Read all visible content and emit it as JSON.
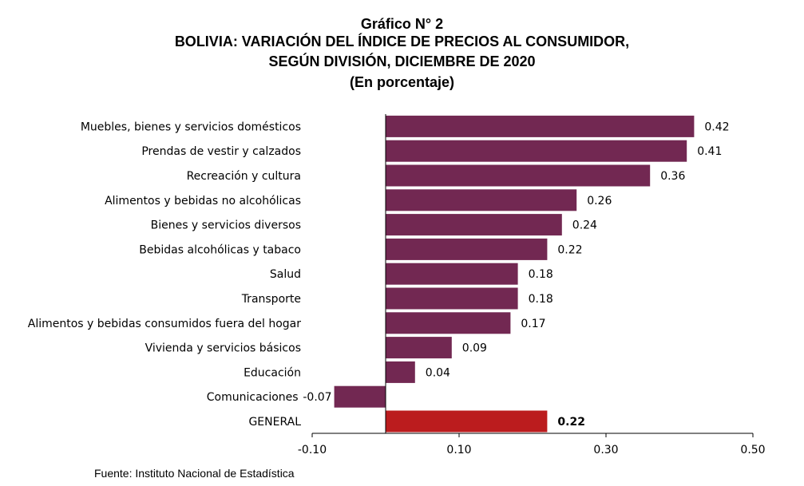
{
  "chart_data": {
    "type": "bar",
    "orientation": "horizontal",
    "title_lines": [
      "Gráfico N° 2",
      "BOLIVIA: VARIACIÓN DEL ÍNDICE DE PRECIOS AL CONSUMIDOR,",
      "SEGÚN DIVISIÓN, DICIEMBRE DE 2020",
      "(En porcentaje)"
    ],
    "categories": [
      "Muebles, bienes y servicios domésticos",
      "Prendas de vestir y calzados",
      "Recreación y cultura",
      "Alimentos y bebidas no alcohólicas",
      "Bienes y servicios diversos",
      "Bebidas alcohólicas y tabaco",
      "Salud",
      "Transporte",
      "Alimentos y bebidas consumidos fuera del hogar",
      "Vivienda y servicios básicos",
      "Educación",
      "Comunicaciones",
      "GENERAL"
    ],
    "values": [
      0.42,
      0.41,
      0.36,
      0.26,
      0.24,
      0.22,
      0.18,
      0.18,
      0.17,
      0.09,
      0.04,
      -0.07,
      0.22
    ],
    "value_labels": [
      "0.42",
      "0.41",
      "0.36",
      "0.26",
      "0.24",
      "0.22",
      "0.18",
      "0.18",
      "0.17",
      "0.09",
      "0.04",
      "-0.07",
      "0.22"
    ],
    "xlim": [
      -0.1,
      0.5
    ],
    "x_ticks": [
      -0.1,
      0.1,
      0.3,
      0.5
    ],
    "x_tick_labels": [
      "-0.10",
      "0.10",
      "0.30",
      "0.50"
    ],
    "highlight_category": "GENERAL",
    "grid": false,
    "colors": {
      "bar": "#722852",
      "highlight": "#BB1C1E",
      "axis": "#000000",
      "text": "#000000"
    }
  },
  "source_note": "Fuente: Instituto Nacional de Estadística"
}
